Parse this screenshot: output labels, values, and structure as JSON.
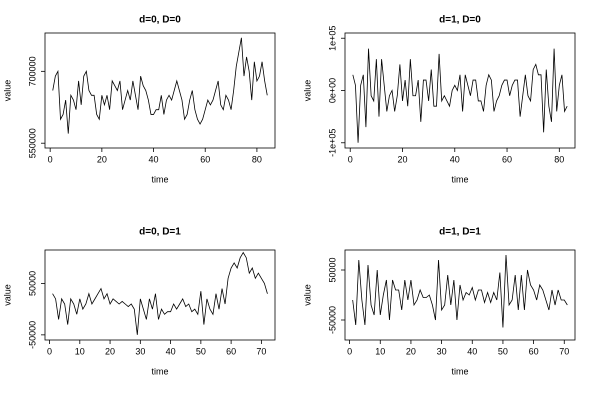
{
  "chart_data": [
    {
      "type": "line",
      "title": "d=0, D=0",
      "xlabel": "time",
      "ylabel": "value",
      "color": "#000000",
      "xlim": [
        -2,
        87
      ],
      "xticks": [
        0,
        20,
        40,
        60,
        80
      ],
      "ylim": [
        540000,
        780000
      ],
      "yticks": [
        550000,
        700000
      ],
      "x": [
        1,
        2,
        3,
        4,
        5,
        6,
        7,
        8,
        9,
        10,
        11,
        12,
        13,
        14,
        15,
        16,
        17,
        18,
        19,
        20,
        21,
        22,
        23,
        24,
        25,
        26,
        27,
        28,
        29,
        30,
        31,
        32,
        33,
        34,
        35,
        36,
        37,
        38,
        39,
        40,
        41,
        42,
        43,
        44,
        45,
        46,
        47,
        48,
        49,
        50,
        51,
        52,
        53,
        54,
        55,
        56,
        57,
        58,
        59,
        60,
        61,
        62,
        63,
        64,
        65,
        66,
        67,
        68,
        69,
        70,
        71,
        72,
        73,
        74,
        75,
        76,
        77,
        78,
        79,
        80,
        81,
        82,
        83,
        84
      ],
      "values": [
        660000,
        690000,
        700000,
        600000,
        610000,
        640000,
        570000,
        650000,
        640000,
        620000,
        680000,
        630000,
        690000,
        700000,
        660000,
        650000,
        650000,
        610000,
        600000,
        650000,
        630000,
        650000,
        620000,
        680000,
        670000,
        660000,
        680000,
        620000,
        640000,
        660000,
        640000,
        680000,
        650000,
        620000,
        690000,
        670000,
        660000,
        640000,
        610000,
        610000,
        620000,
        620000,
        650000,
        610000,
        640000,
        650000,
        640000,
        660000,
        680000,
        660000,
        640000,
        600000,
        610000,
        640000,
        660000,
        620000,
        600000,
        590000,
        600000,
        620000,
        640000,
        630000,
        640000,
        660000,
        680000,
        630000,
        620000,
        650000,
        640000,
        620000,
        660000,
        710000,
        740000,
        770000,
        690000,
        730000,
        700000,
        640000,
        720000,
        680000,
        690000,
        720000,
        680000,
        650000
      ]
    },
    {
      "type": "line",
      "title": "d=1, D=0",
      "xlabel": "time",
      "ylabel": "value",
      "color": "#000000",
      "xlim": [
        -2,
        86
      ],
      "xticks": [
        0,
        20,
        40,
        60,
        80
      ],
      "ylim": [
        -110000,
        110000
      ],
      "yticks": [
        {
          "value": -100000,
          "label": "-1e+05"
        },
        {
          "value": 0,
          "label": "0e+00"
        },
        {
          "value": 100000,
          "label": "1e+05"
        }
      ],
      "x": [
        1,
        2,
        3,
        4,
        5,
        6,
        7,
        8,
        9,
        10,
        11,
        12,
        13,
        14,
        15,
        16,
        17,
        18,
        19,
        20,
        21,
        22,
        23,
        24,
        25,
        26,
        27,
        28,
        29,
        30,
        31,
        32,
        33,
        34,
        35,
        36,
        37,
        38,
        39,
        40,
        41,
        42,
        43,
        44,
        45,
        46,
        47,
        48,
        49,
        50,
        51,
        52,
        53,
        54,
        55,
        56,
        57,
        58,
        59,
        60,
        61,
        62,
        63,
        64,
        65,
        66,
        67,
        68,
        69,
        70,
        71,
        72,
        73,
        74,
        75,
        76,
        77,
        78,
        79,
        80,
        81,
        82,
        83
      ],
      "values": [
        30000,
        10000,
        -100000,
        10000,
        30000,
        -70000,
        80000,
        -10000,
        -20000,
        60000,
        -50000,
        60000,
        10000,
        -40000,
        -10000,
        0,
        -40000,
        -10000,
        50000,
        -20000,
        20000,
        -30000,
        60000,
        -10000,
        -10000,
        20000,
        -60000,
        20000,
        20000,
        -20000,
        40000,
        -30000,
        -30000,
        70000,
        -20000,
        -10000,
        -20000,
        -30000,
        0,
        10000,
        0,
        30000,
        -40000,
        30000,
        10000,
        -10000,
        20000,
        20000,
        -20000,
        -20000,
        -40000,
        10000,
        30000,
        20000,
        -40000,
        -20000,
        -10000,
        10000,
        20000,
        20000,
        -10000,
        10000,
        20000,
        20000,
        -50000,
        -10000,
        30000,
        -10000,
        -20000,
        40000,
        50000,
        30000,
        30000,
        -80000,
        40000,
        -30000,
        -60000,
        80000,
        -40000,
        10000,
        30000,
        -40000,
        -30000
      ]
    },
    {
      "type": "line",
      "title": "d=0, D=1",
      "xlabel": "time",
      "ylabel": "value",
      "color": "#000000",
      "xlim": [
        -1.5,
        74.5
      ],
      "xticks": [
        0,
        10,
        20,
        30,
        40,
        50,
        60,
        70
      ],
      "ylim": [
        -60000,
        115000
      ],
      "yticks": [
        -50000,
        50000
      ],
      "x": [
        1,
        2,
        3,
        4,
        5,
        6,
        7,
        8,
        9,
        10,
        11,
        12,
        13,
        14,
        15,
        16,
        17,
        18,
        19,
        20,
        21,
        22,
        23,
        24,
        25,
        26,
        27,
        28,
        29,
        30,
        31,
        32,
        33,
        34,
        35,
        36,
        37,
        38,
        39,
        40,
        41,
        42,
        43,
        44,
        45,
        46,
        47,
        48,
        49,
        50,
        51,
        52,
        53,
        54,
        55,
        56,
        57,
        58,
        59,
        60,
        61,
        62,
        63,
        64,
        65,
        66,
        67,
        68,
        69,
        70,
        71,
        72
      ],
      "values": [
        30000,
        20000,
        -20000,
        20000,
        10000,
        -30000,
        20000,
        10000,
        -10000,
        20000,
        0,
        10000,
        30000,
        10000,
        20000,
        30000,
        40000,
        20000,
        30000,
        10000,
        20000,
        15000,
        10000,
        15000,
        10000,
        5000,
        10000,
        0,
        -50000,
        20000,
        0,
        -20000,
        20000,
        0,
        30000,
        -20000,
        0,
        -10000,
        -5000,
        -5000,
        10000,
        0,
        10000,
        20000,
        5000,
        10000,
        -5000,
        0,
        -10000,
        35000,
        -30000,
        20000,
        0,
        -10000,
        30000,
        0,
        40000,
        10000,
        60000,
        80000,
        90000,
        80000,
        100000,
        110000,
        100000,
        70000,
        80000,
        60000,
        70000,
        60000,
        50000,
        30000
      ]
    },
    {
      "type": "line",
      "title": "d=1, D=1",
      "xlabel": "time",
      "ylabel": "value",
      "color": "#000000",
      "xlim": [
        -1.5,
        73.5
      ],
      "xticks": [
        0,
        10,
        20,
        30,
        40,
        50,
        60,
        70
      ],
      "ylim": [
        -90000,
        90000
      ],
      "yticks": [
        -50000,
        50000
      ],
      "x": [
        1,
        2,
        3,
        4,
        5,
        6,
        7,
        8,
        9,
        10,
        11,
        12,
        13,
        14,
        15,
        16,
        17,
        18,
        19,
        20,
        21,
        22,
        23,
        24,
        25,
        26,
        27,
        28,
        29,
        30,
        31,
        32,
        33,
        34,
        35,
        36,
        37,
        38,
        39,
        40,
        41,
        42,
        43,
        44,
        45,
        46,
        47,
        48,
        49,
        50,
        51,
        52,
        53,
        54,
        55,
        56,
        57,
        58,
        59,
        60,
        61,
        62,
        63,
        64,
        65,
        66,
        67,
        68,
        69,
        70,
        71
      ],
      "values": [
        -10000,
        -60000,
        70000,
        -10000,
        -60000,
        60000,
        -20000,
        -40000,
        50000,
        -40000,
        0,
        30000,
        -50000,
        30000,
        10000,
        10000,
        -30000,
        30000,
        -10000,
        30000,
        -20000,
        -10000,
        10000,
        -5000,
        -5000,
        0,
        -20000,
        -50000,
        70000,
        -30000,
        -20000,
        40000,
        -20000,
        30000,
        -50000,
        20000,
        -10000,
        5000,
        0,
        15000,
        -10000,
        10000,
        10000,
        -15000,
        5000,
        -15000,
        5000,
        -10000,
        45000,
        -65000,
        80000,
        -20000,
        -10000,
        40000,
        -30000,
        40000,
        -30000,
        50000,
        20000,
        10000,
        -10000,
        20000,
        10000,
        -10000,
        -30000,
        10000,
        -20000,
        10000,
        -10000,
        -10000,
        -20000
      ]
    }
  ]
}
